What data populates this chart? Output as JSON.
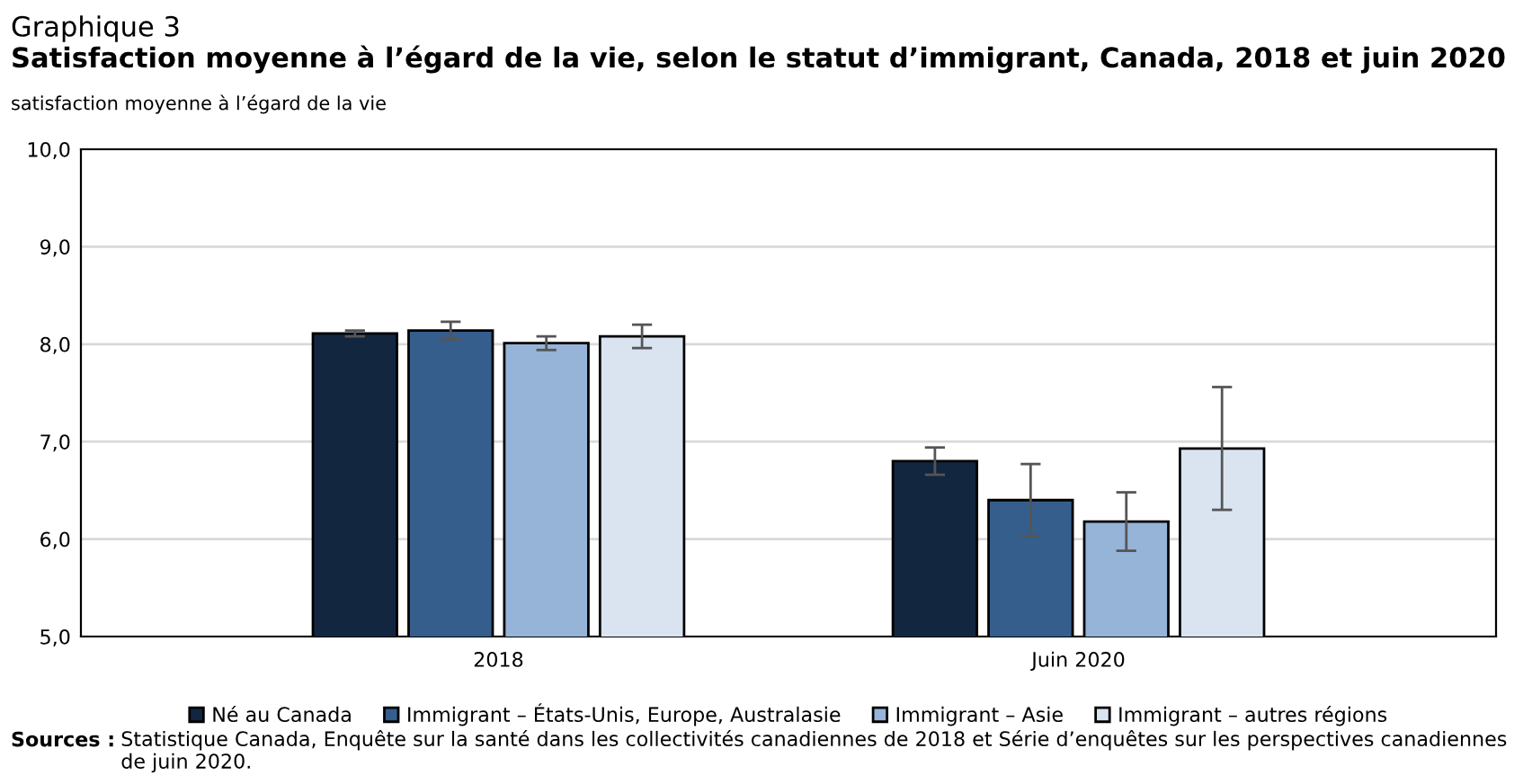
{
  "chart_data": {
    "type": "bar",
    "title": "Graphique 3",
    "subtitle": "Satisfaction moyenne à l’égard de la vie, selon le statut d’immigrant, Canada, 2018 et juin 2020",
    "ylabel": "satisfaction moyenne à l’égard de la vie",
    "categories": [
      "2018",
      "Juin 2020"
    ],
    "series": [
      {
        "name": "Né au Canada",
        "color": "#12263f",
        "values": [
          8.11,
          6.8
        ],
        "errors": [
          0.03,
          0.14
        ]
      },
      {
        "name": "Immigrant – États-Unis, Europe, Australasie",
        "color": "#355e8d",
        "values": [
          8.14,
          6.4
        ],
        "errors": [
          0.09,
          0.37
        ]
      },
      {
        "name": "Immigrant – Asie",
        "color": "#96b3d8",
        "values": [
          8.01,
          6.18
        ],
        "errors": [
          0.07,
          0.3
        ]
      },
      {
        "name": "Immigrant – autres régions",
        "color": "#dae4f1",
        "values": [
          8.08,
          6.93
        ],
        "errors": [
          0.12,
          0.63
        ]
      }
    ],
    "ylim": [
      5,
      10
    ],
    "yticks": [
      {
        "value": 5,
        "label": "5,0"
      },
      {
        "value": 6,
        "label": "6,0"
      },
      {
        "value": 7,
        "label": "7,0"
      },
      {
        "value": 8,
        "label": "8,0"
      },
      {
        "value": 9,
        "label": "9,0"
      },
      {
        "value": 10,
        "label": "10,0"
      }
    ],
    "grid": "y",
    "legend": "bottom",
    "annotations": [
      "Sources : Statistique Canada, Enquête sur la santé dans les collectivités canadiennes de 2018 et Série d’enquêtes sur les perspectives canadiennes de juin 2020."
    ]
  }
}
